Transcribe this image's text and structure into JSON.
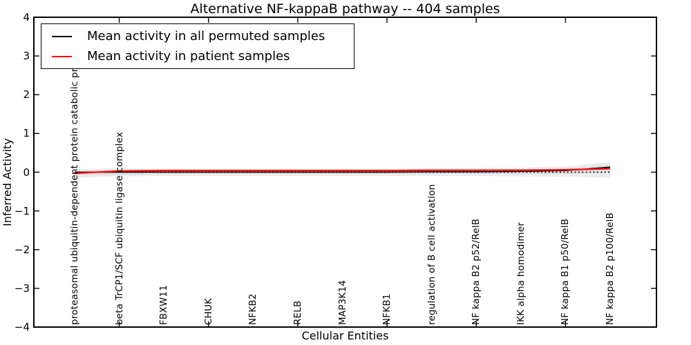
{
  "figure": {
    "background": "#ffffff"
  },
  "chart_data": {
    "type": "line",
    "title": "Alternative NF-kappaB pathway -- 404 samples",
    "xlabel": "Cellular Entities",
    "ylabel": "Inferred Activity",
    "ylim": [
      -4,
      4
    ],
    "yticks": [
      4,
      3,
      2,
      1,
      0,
      -1,
      -2,
      -3,
      -4
    ],
    "grid": false,
    "legend_position": "upper left",
    "categories": [
      "proteasomal ubiquitin-dependent protein catabolic pr",
      "beta TrCP1/SCF ubiquitin ligase complex",
      "FBXW11",
      "CHUK",
      "NFKB2",
      "RELB",
      "MAP3K14",
      "NFKB1",
      "regulation of B cell activation",
      "NF kappa B2 p52/RelB",
      "IKK alpha homodimer",
      "NF kappa B1 p50/RelB",
      "NF kappa B2 p100/RelB"
    ],
    "series": [
      {
        "name": "Mean activity in all permuted samples",
        "color": "#000000",
        "line_style": "solid",
        "values": [
          0.0,
          0.0,
          0.0,
          0.0,
          0.0,
          0.0,
          0.0,
          0.0,
          0.01,
          0.01,
          0.02,
          0.04,
          0.13
        ]
      },
      {
        "name": "Mean activity in patient samples",
        "color": "#ff0000",
        "line_style": "solid",
        "values": [
          -0.03,
          0.03,
          0.04,
          0.04,
          0.04,
          0.04,
          0.04,
          0.04,
          0.05,
          0.05,
          0.05,
          0.06,
          0.09
        ]
      }
    ],
    "zero_line": {
      "y": 0,
      "color": "#000000",
      "line_style": "dotted"
    },
    "uncertainty_band": {
      "outer_color": "#ececec",
      "inner_color": "#dedede",
      "upper": [
        0.08,
        0.1,
        0.1,
        0.1,
        0.1,
        0.1,
        0.1,
        0.1,
        0.11,
        0.11,
        0.12,
        0.15,
        0.26
      ],
      "lower": [
        -0.14,
        -0.11,
        -0.1,
        -0.1,
        -0.1,
        -0.1,
        -0.1,
        -0.1,
        -0.1,
        -0.1,
        -0.11,
        -0.12,
        -0.14
      ]
    }
  }
}
